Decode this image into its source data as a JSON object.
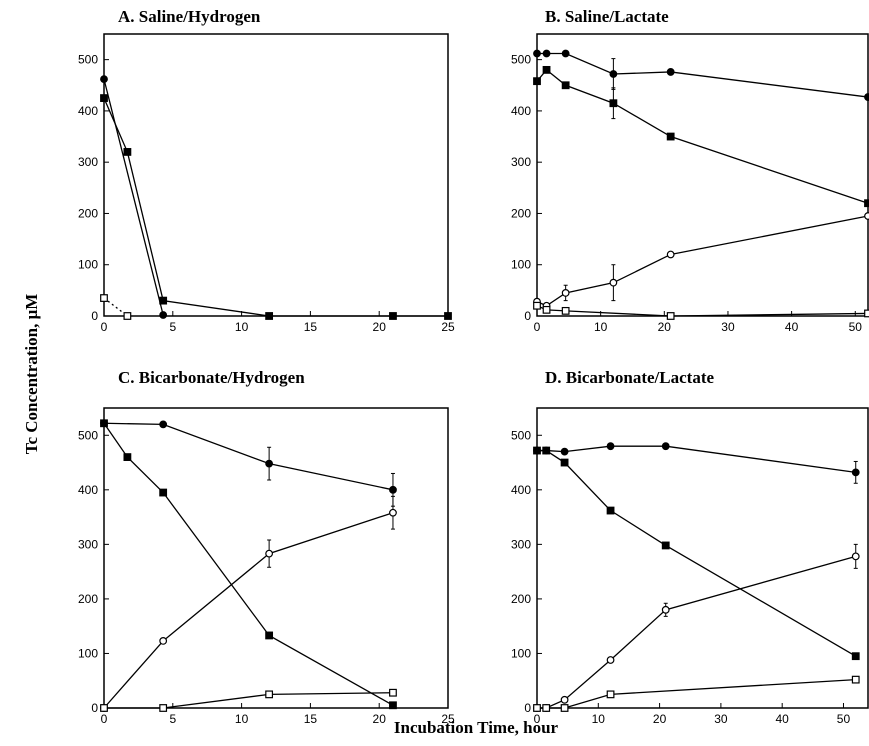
{
  "figure": {
    "ylabel": "Tc Concentration, μM",
    "xlabel": "Incubation Time, hour"
  },
  "legend_markers": {
    "filled_circle": "●",
    "filled_square": "■",
    "open_circle": "○",
    "open_square": "□"
  },
  "chart_data": [
    {
      "type": "line",
      "title": "A. Saline/Hydrogen",
      "xlim": [
        0,
        25
      ],
      "ylim": [
        0,
        550
      ],
      "xticks": [
        0,
        5,
        10,
        15,
        20,
        25
      ],
      "yticks": [
        0,
        100,
        200,
        300,
        400,
        500
      ],
      "grid": false,
      "series": [
        {
          "marker": "filled_circle",
          "points": [
            [
              0,
              462
            ],
            [
              4.3,
              2
            ]
          ]
        },
        {
          "marker": "filled_square",
          "points": [
            [
              0,
              425
            ],
            [
              1.7,
              320
            ],
            [
              4.3,
              30
            ],
            [
              12,
              0
            ],
            [
              21,
              0
            ],
            [
              25,
              0
            ]
          ]
        },
        {
          "marker": "open_square",
          "dashed": true,
          "points": [
            [
              0,
              35
            ],
            [
              1.7,
              0
            ]
          ]
        }
      ]
    },
    {
      "type": "line",
      "title": "B. Saline/Lactate",
      "xlim": [
        0,
        52
      ],
      "ylim": [
        0,
        550
      ],
      "xticks": [
        0,
        10,
        20,
        30,
        40,
        50
      ],
      "yticks": [
        0,
        100,
        200,
        300,
        400,
        500
      ],
      "grid": false,
      "series": [
        {
          "marker": "filled_circle",
          "points": [
            [
              0,
              512
            ],
            [
              1.5,
              512
            ],
            [
              4.5,
              512
            ],
            [
              12,
              472
            ],
            [
              21,
              476
            ],
            [
              52,
              427
            ]
          ],
          "errors": [
            0,
            0,
            0,
            30,
            0,
            0
          ]
        },
        {
          "marker": "filled_square",
          "points": [
            [
              0,
              458
            ],
            [
              1.5,
              480
            ],
            [
              4.5,
              450
            ],
            [
              12,
              415
            ],
            [
              21,
              350
            ],
            [
              52,
              220
            ]
          ],
          "errors": [
            0,
            0,
            0,
            30,
            0,
            0
          ]
        },
        {
          "marker": "open_circle",
          "points": [
            [
              0,
              28
            ],
            [
              1.5,
              20
            ],
            [
              4.5,
              45
            ],
            [
              12,
              65
            ],
            [
              21,
              120
            ],
            [
              52,
              195
            ]
          ],
          "errors": [
            0,
            0,
            15,
            35,
            0,
            0
          ]
        },
        {
          "marker": "open_square",
          "points": [
            [
              0,
              20
            ],
            [
              1.5,
              12
            ],
            [
              4.5,
              10
            ],
            [
              21,
              0
            ],
            [
              52,
              5
            ]
          ]
        }
      ]
    },
    {
      "type": "line",
      "title": "C. Bicarbonate/Hydrogen",
      "xlim": [
        0,
        25
      ],
      "ylim": [
        0,
        550
      ],
      "xticks": [
        0,
        5,
        10,
        15,
        20,
        25
      ],
      "yticks": [
        0,
        100,
        200,
        300,
        400,
        500
      ],
      "grid": false,
      "series": [
        {
          "marker": "filled_circle",
          "points": [
            [
              0,
              522
            ],
            [
              4.3,
              520
            ],
            [
              12,
              448
            ],
            [
              21,
              400
            ]
          ],
          "errors": [
            0,
            0,
            30,
            30
          ]
        },
        {
          "marker": "filled_square",
          "points": [
            [
              0,
              522
            ],
            [
              1.7,
              460
            ],
            [
              4.3,
              395
            ],
            [
              12,
              133
            ],
            [
              21,
              5
            ]
          ]
        },
        {
          "marker": "open_circle",
          "points": [
            [
              0,
              0
            ],
            [
              4.3,
              123
            ],
            [
              12,
              283
            ],
            [
              21,
              358
            ]
          ],
          "errors": [
            0,
            0,
            25,
            30
          ]
        },
        {
          "marker": "open_square",
          "points": [
            [
              0,
              0
            ],
            [
              4.3,
              0
            ],
            [
              12,
              25
            ],
            [
              21,
              28
            ]
          ]
        }
      ]
    },
    {
      "type": "line",
      "title": "D. Bicarbonate/Lactate",
      "xlim": [
        0,
        54
      ],
      "ylim": [
        0,
        550
      ],
      "xticks": [
        0,
        10,
        20,
        30,
        40,
        50
      ],
      "yticks": [
        0,
        100,
        200,
        300,
        400,
        500
      ],
      "grid": false,
      "series": [
        {
          "marker": "filled_circle",
          "points": [
            [
              0,
              472
            ],
            [
              1.5,
              472
            ],
            [
              4.5,
              470
            ],
            [
              12,
              480
            ],
            [
              21,
              480
            ],
            [
              52,
              432
            ]
          ],
          "errors": [
            0,
            0,
            0,
            0,
            0,
            20
          ]
        },
        {
          "marker": "filled_square",
          "points": [
            [
              0,
              472
            ],
            [
              1.5,
              472
            ],
            [
              4.5,
              450
            ],
            [
              12,
              362
            ],
            [
              21,
              298
            ],
            [
              52,
              95
            ]
          ]
        },
        {
          "marker": "open_circle",
          "points": [
            [
              0,
              0
            ],
            [
              1.5,
              0
            ],
            [
              4.5,
              15
            ],
            [
              12,
              88
            ],
            [
              21,
              180
            ],
            [
              52,
              278
            ]
          ],
          "errors": [
            0,
            0,
            0,
            0,
            12,
            22
          ]
        },
        {
          "marker": "open_square",
          "points": [
            [
              0,
              0
            ],
            [
              1.5,
              0
            ],
            [
              4.5,
              0
            ],
            [
              12,
              25
            ],
            [
              52,
              52
            ]
          ]
        }
      ]
    }
  ]
}
